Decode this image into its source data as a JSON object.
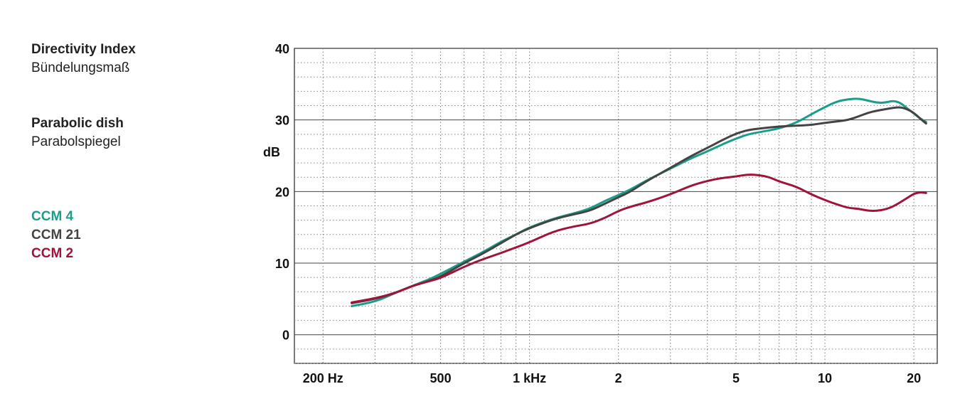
{
  "labels": {
    "title_en": "Directivity Index",
    "title_de": "Bündelungsmaß",
    "subtitle_en": "Parabolic dish",
    "subtitle_de": "Parabolspiegel"
  },
  "chart_data": {
    "type": "line",
    "xscale": "log",
    "xlim": [
      160,
      24000
    ],
    "ylim": [
      -4,
      40
    ],
    "ylabel": "dB",
    "x_ticks": [
      {
        "value": 200,
        "label": "200 Hz"
      },
      {
        "value": 500,
        "label": "500"
      },
      {
        "value": 1000,
        "label": "1 kHz"
      },
      {
        "value": 2000,
        "label": "2"
      },
      {
        "value": 5000,
        "label": "5"
      },
      {
        "value": 10000,
        "label": "10"
      },
      {
        "value": 20000,
        "label": "20"
      }
    ],
    "y_ticks": [
      0,
      10,
      20,
      30,
      40
    ],
    "grid": true,
    "legend_position": "left",
    "series": [
      {
        "name": "CCM 4",
        "color": "#1a9e8a",
        "points": [
          [
            250,
            4.0
          ],
          [
            300,
            4.6
          ],
          [
            350,
            5.8
          ],
          [
            400,
            6.8
          ],
          [
            450,
            7.6
          ],
          [
            500,
            8.5
          ],
          [
            600,
            10.2
          ],
          [
            700,
            11.6
          ],
          [
            800,
            13.0
          ],
          [
            900,
            14.0
          ],
          [
            1000,
            15.0
          ],
          [
            1200,
            16.2
          ],
          [
            1400,
            16.9
          ],
          [
            1600,
            17.6
          ],
          [
            1800,
            18.7
          ],
          [
            2000,
            19.5
          ],
          [
            2200,
            20.3
          ],
          [
            2500,
            21.6
          ],
          [
            3000,
            23.2
          ],
          [
            3500,
            24.6
          ],
          [
            4000,
            25.6
          ],
          [
            4500,
            26.6
          ],
          [
            5000,
            27.4
          ],
          [
            5500,
            28.0
          ],
          [
            6000,
            28.3
          ],
          [
            7000,
            28.8
          ],
          [
            8000,
            29.6
          ],
          [
            9000,
            30.8
          ],
          [
            10000,
            31.8
          ],
          [
            11000,
            32.6
          ],
          [
            12000,
            32.9
          ],
          [
            13000,
            33.0
          ],
          [
            14000,
            32.7
          ],
          [
            15000,
            32.4
          ],
          [
            16000,
            32.4
          ],
          [
            17000,
            32.7
          ],
          [
            18000,
            32.4
          ],
          [
            19000,
            31.6
          ],
          [
            20000,
            30.9
          ],
          [
            21000,
            30.2
          ],
          [
            22000,
            29.7
          ]
        ]
      },
      {
        "name": "CCM 21",
        "color": "#444444",
        "points": [
          [
            250,
            4.4
          ],
          [
            300,
            5.0
          ],
          [
            350,
            5.8
          ],
          [
            400,
            6.8
          ],
          [
            450,
            7.4
          ],
          [
            500,
            8.1
          ],
          [
            600,
            10.0
          ],
          [
            700,
            11.4
          ],
          [
            800,
            12.8
          ],
          [
            900,
            14.0
          ],
          [
            1000,
            14.9
          ],
          [
            1200,
            16.1
          ],
          [
            1400,
            16.8
          ],
          [
            1600,
            17.3
          ],
          [
            1800,
            18.3
          ],
          [
            2000,
            19.2
          ],
          [
            2200,
            20.0
          ],
          [
            2500,
            21.5
          ],
          [
            3000,
            23.3
          ],
          [
            3500,
            24.9
          ],
          [
            4000,
            26.1
          ],
          [
            4500,
            27.2
          ],
          [
            5000,
            28.1
          ],
          [
            5500,
            28.6
          ],
          [
            6000,
            28.8
          ],
          [
            7000,
            29.1
          ],
          [
            8000,
            29.2
          ],
          [
            9000,
            29.3
          ],
          [
            10000,
            29.6
          ],
          [
            11000,
            29.8
          ],
          [
            12000,
            30.0
          ],
          [
            13000,
            30.5
          ],
          [
            14000,
            31.0
          ],
          [
            15000,
            31.3
          ],
          [
            16000,
            31.5
          ],
          [
            17000,
            31.7
          ],
          [
            18000,
            31.8
          ],
          [
            19000,
            31.5
          ],
          [
            20000,
            31.0
          ],
          [
            21000,
            30.2
          ],
          [
            22000,
            29.5
          ]
        ]
      },
      {
        "name": "CCM 2",
        "color": "#a0133a",
        "points": [
          [
            250,
            4.5
          ],
          [
            300,
            5.1
          ],
          [
            350,
            5.8
          ],
          [
            400,
            6.8
          ],
          [
            450,
            7.4
          ],
          [
            500,
            7.9
          ],
          [
            600,
            9.5
          ],
          [
            700,
            10.6
          ],
          [
            800,
            11.4
          ],
          [
            900,
            12.2
          ],
          [
            1000,
            12.9
          ],
          [
            1200,
            14.4
          ],
          [
            1400,
            15.1
          ],
          [
            1600,
            15.5
          ],
          [
            1800,
            16.3
          ],
          [
            2000,
            17.3
          ],
          [
            2200,
            17.9
          ],
          [
            2500,
            18.5
          ],
          [
            3000,
            19.6
          ],
          [
            3500,
            20.8
          ],
          [
            4000,
            21.5
          ],
          [
            4500,
            21.9
          ],
          [
            5000,
            22.1
          ],
          [
            5500,
            22.4
          ],
          [
            6000,
            22.3
          ],
          [
            6500,
            22.0
          ],
          [
            7000,
            21.4
          ],
          [
            8000,
            20.7
          ],
          [
            9000,
            19.6
          ],
          [
            10000,
            18.8
          ],
          [
            11000,
            18.2
          ],
          [
            12000,
            17.7
          ],
          [
            13000,
            17.6
          ],
          [
            14000,
            17.3
          ],
          [
            15000,
            17.3
          ],
          [
            16000,
            17.5
          ],
          [
            17000,
            17.9
          ],
          [
            18000,
            18.5
          ],
          [
            19000,
            19.1
          ],
          [
            20000,
            19.7
          ],
          [
            21000,
            19.9
          ],
          [
            22000,
            19.8
          ]
        ]
      }
    ]
  }
}
